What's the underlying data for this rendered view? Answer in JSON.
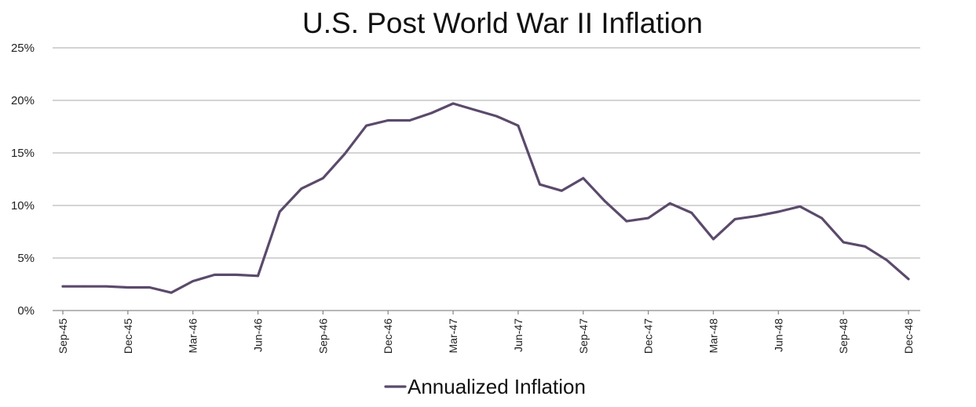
{
  "chart_data": {
    "type": "line",
    "title": "U.S. Post World War II Inflation",
    "xlabel": "",
    "ylabel": "",
    "ylim": [
      0,
      25
    ],
    "yticks": [
      "0%",
      "5%",
      "10%",
      "15%",
      "20%",
      "25%"
    ],
    "ytick_values": [
      0,
      5,
      10,
      15,
      20,
      25
    ],
    "xticks": [
      "Sep-45",
      "Dec-45",
      "Mar-46",
      "Jun-46",
      "Sep-46",
      "Dec-46",
      "Mar-47",
      "Jun-47",
      "Sep-47",
      "Dec-47",
      "Mar-48",
      "Jun-48",
      "Sep-48",
      "Dec-48"
    ],
    "grid": true,
    "legend": "bottom-center",
    "series": [
      {
        "name": "Annualized Inflation",
        "color": "#5b4a6b",
        "x": [
          "Sep-45",
          "Oct-45",
          "Nov-45",
          "Dec-45",
          "Jan-46",
          "Feb-46",
          "Mar-46",
          "Apr-46",
          "May-46",
          "Jun-46",
          "Jul-46",
          "Aug-46",
          "Sep-46",
          "Oct-46",
          "Nov-46",
          "Dec-46",
          "Jan-47",
          "Feb-47",
          "Mar-47",
          "Apr-47",
          "May-47",
          "Jun-47",
          "Jul-47",
          "Aug-47",
          "Sep-47",
          "Oct-47",
          "Nov-47",
          "Dec-47",
          "Jan-48",
          "Feb-48",
          "Mar-48",
          "Apr-48",
          "May-48",
          "Jun-48",
          "Jul-48",
          "Aug-48",
          "Sep-48",
          "Oct-48",
          "Nov-48",
          "Dec-48"
        ],
        "values": [
          2.3,
          2.3,
          2.3,
          2.2,
          2.2,
          1.7,
          2.8,
          3.4,
          3.4,
          3.3,
          9.4,
          11.6,
          12.6,
          14.9,
          17.6,
          18.1,
          18.1,
          18.8,
          19.7,
          19.1,
          18.5,
          17.6,
          12.0,
          11.4,
          12.6,
          10.4,
          8.5,
          8.8,
          10.2,
          9.3,
          6.8,
          8.7,
          9.0,
          9.4,
          9.9,
          8.8,
          6.5,
          6.1,
          4.8,
          3.0
        ]
      }
    ]
  }
}
